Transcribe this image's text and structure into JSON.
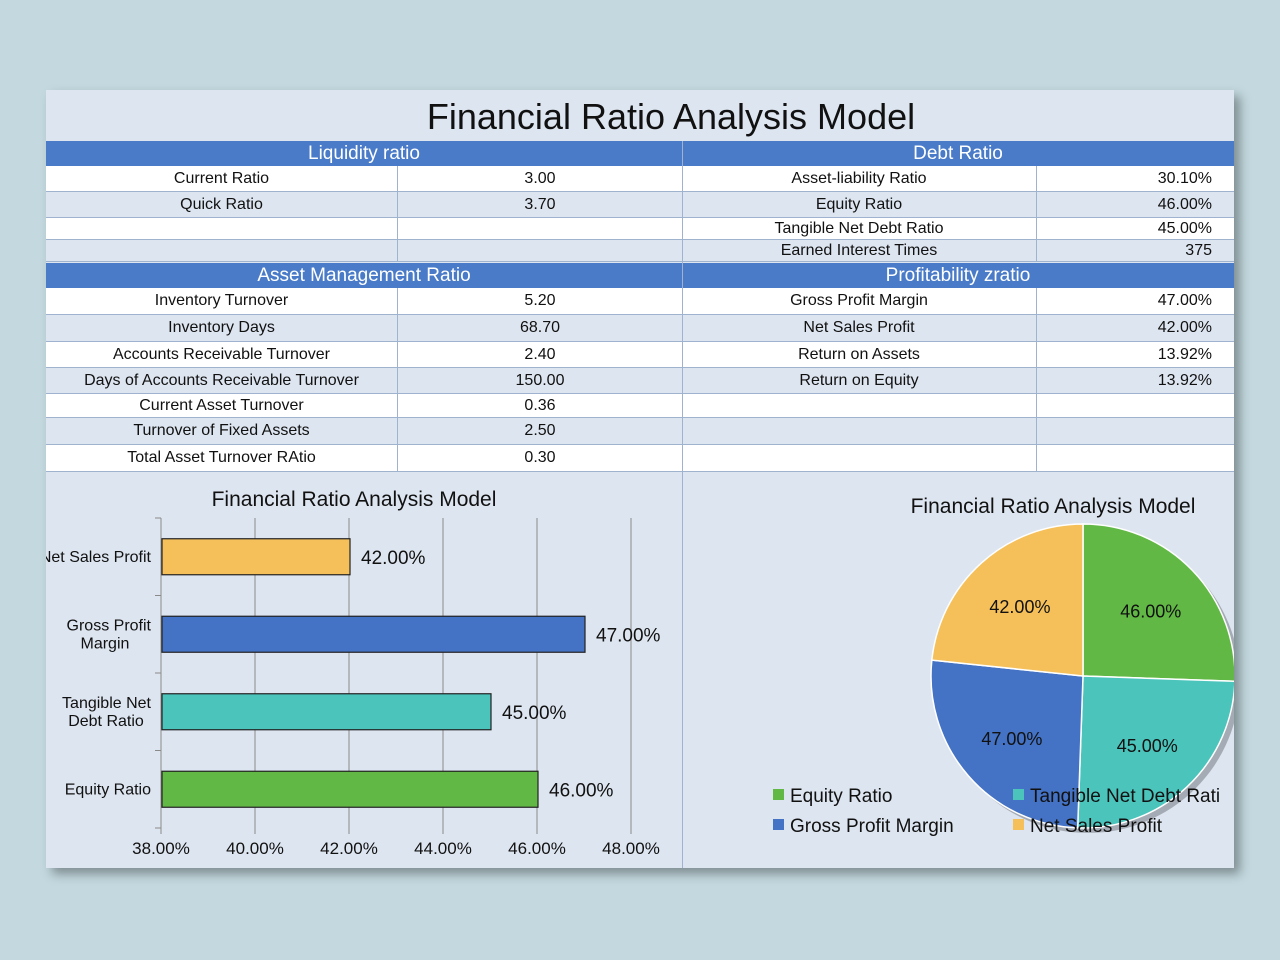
{
  "title": "Financial Ratio Analysis Model",
  "sections": {
    "liquidity": {
      "header": "Liquidity ratio",
      "rows": [
        {
          "label": "Current Ratio",
          "value": "3.00"
        },
        {
          "label": "Quick Ratio",
          "value": "3.70"
        },
        {
          "label": "",
          "value": ""
        },
        {
          "label": "",
          "value": ""
        }
      ]
    },
    "debt": {
      "header": "Debt Ratio",
      "rows": [
        {
          "label": "Asset-liability Ratio",
          "value": "30.10%"
        },
        {
          "label": "Equity Ratio",
          "value": "46.00%"
        },
        {
          "label": "Tangible Net Debt Ratio",
          "value": "45.00%"
        },
        {
          "label": "Earned Interest Times",
          "value": "375"
        }
      ]
    },
    "asset_management": {
      "header": "Asset Management Ratio",
      "rows": [
        {
          "label": "Inventory Turnover",
          "value": "5.20"
        },
        {
          "label": "Inventory Days",
          "value": "68.70"
        },
        {
          "label": "Accounts Receivable Turnover",
          "value": "2.40"
        },
        {
          "label": "Days of Accounts Receivable Turnover",
          "value": "150.00"
        },
        {
          "label": "Current Asset Turnover",
          "value": "0.36"
        },
        {
          "label": "Turnover of Fixed Assets",
          "value": "2.50"
        },
        {
          "label": "Total Asset Turnover RAtio",
          "value": "0.30"
        }
      ]
    },
    "profitability": {
      "header": "Profitability zratio",
      "rows": [
        {
          "label": "Gross Profit Margin",
          "value": "47.00%"
        },
        {
          "label": "Net Sales Profit",
          "value": "42.00%"
        },
        {
          "label": "Return on Assets",
          "value": "13.92%"
        },
        {
          "label": "Return on Equity",
          "value": "13.92%"
        },
        {
          "label": "",
          "value": ""
        },
        {
          "label": "",
          "value": ""
        },
        {
          "label": "",
          "value": ""
        }
      ]
    }
  },
  "chart_data": [
    {
      "type": "bar",
      "orientation": "horizontal",
      "title": "Financial Ratio Analysis Model",
      "categories": [
        "Net Sales Profit",
        "Gross Profit Margin",
        "Tangible Net Debt Ratio",
        "Equity Ratio"
      ],
      "values": [
        42,
        47,
        45,
        46
      ],
      "value_labels": [
        "42.00%",
        "47.00%",
        "45.00%",
        "46.00%"
      ],
      "colors": [
        "#f5c05a",
        "#4472c4",
        "#4bc4bc",
        "#62b845"
      ],
      "xlim": [
        38,
        48
      ],
      "x_ticks": [
        "38.00%",
        "40.00%",
        "42.00%",
        "44.00%",
        "46.00%",
        "48.00%"
      ],
      "grid": true
    },
    {
      "type": "pie",
      "title": "Financial Ratio Analysis Model",
      "categories": [
        "Equity Ratio",
        "Tangible Net Debt Ratio",
        "Gross Profit Margin",
        "Net Sales Profit"
      ],
      "values": [
        46,
        45,
        47,
        42
      ],
      "value_labels": [
        "46.00%",
        "45.00%",
        "47.00%",
        "42.00%"
      ],
      "colors": [
        "#62b845",
        "#4bc4bc",
        "#4472c4",
        "#f5c05a"
      ],
      "legend_labels": [
        "Equity Ratio",
        "Tangible Net Debt Rati",
        "Gross Profit Margin",
        "Net Sales Profit"
      ],
      "legend_position": "bottom"
    }
  ]
}
